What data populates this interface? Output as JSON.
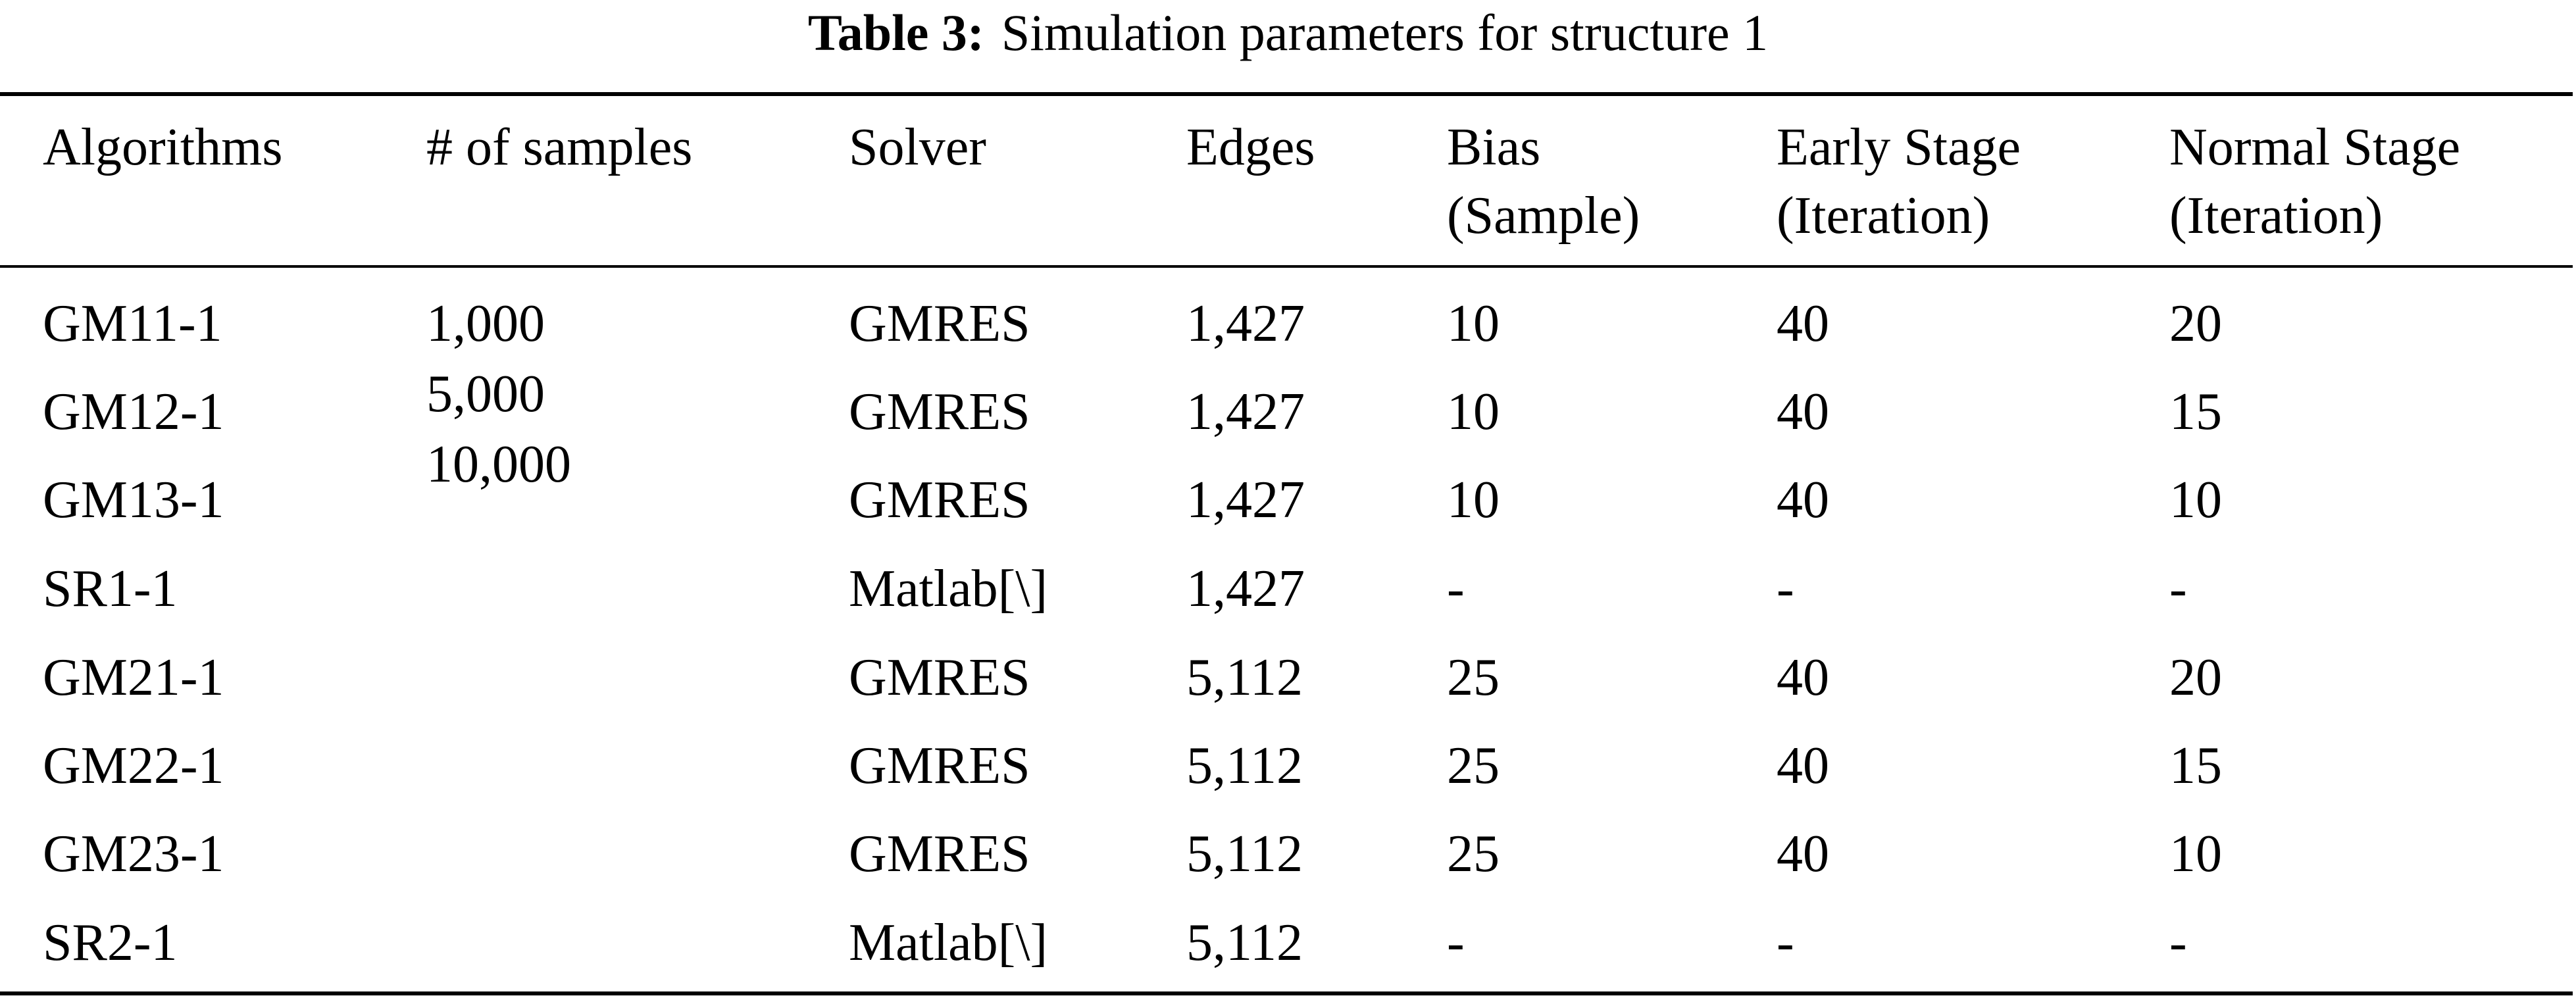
{
  "caption": {
    "label": "Table 3:",
    "title": "Simulation parameters for structure 1"
  },
  "header": {
    "algorithms": "Algorithms",
    "samples": "# of samples",
    "solver": "Solver",
    "edges": "Edges",
    "bias_line1": "Bias",
    "bias_line2": "(Sample)",
    "early_line1": "Early Stage",
    "early_line2": "(Iteration)",
    "normal_line1": "Normal Stage",
    "normal_line2": "(Iteration)"
  },
  "samples": [
    "1,000",
    "5,000",
    "10,000"
  ],
  "rows": [
    {
      "algorithm": "GM11-1",
      "solver": "GMRES",
      "edges": "1,427",
      "bias": "10",
      "early": "40",
      "normal": "20"
    },
    {
      "algorithm": "GM12-1",
      "solver": "GMRES",
      "edges": "1,427",
      "bias": "10",
      "early": "40",
      "normal": "15"
    },
    {
      "algorithm": "GM13-1",
      "solver": "GMRES",
      "edges": "1,427",
      "bias": "10",
      "early": "40",
      "normal": "10"
    },
    {
      "algorithm": "SR1-1",
      "solver": "Matlab[\\]",
      "edges": "1,427",
      "bias": "-",
      "early": "-",
      "normal": "-"
    },
    {
      "algorithm": "GM21-1",
      "solver": "GMRES",
      "edges": "5,112",
      "bias": "25",
      "early": "40",
      "normal": "20"
    },
    {
      "algorithm": "GM22-1",
      "solver": "GMRES",
      "edges": "5,112",
      "bias": "25",
      "early": "40",
      "normal": "15"
    },
    {
      "algorithm": "GM23-1",
      "solver": "GMRES",
      "edges": "5,112",
      "bias": "25",
      "early": "40",
      "normal": "10"
    },
    {
      "algorithm": "SR2-1",
      "solver": "Matlab[\\]",
      "edges": "5,112",
      "bias": "-",
      "early": "-",
      "normal": "-"
    }
  ]
}
